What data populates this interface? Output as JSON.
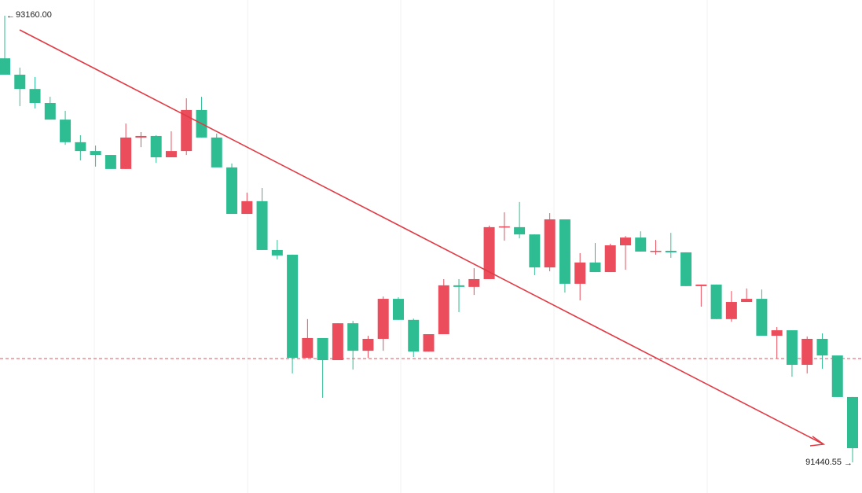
{
  "chart_data": {
    "type": "candlestick",
    "open": [
      92996,
      92933,
      92878,
      92824,
      92760,
      92673,
      92639,
      92624,
      92570,
      92691,
      92697,
      92615,
      92639,
      92797,
      92691,
      92576,
      92397,
      92446,
      92258,
      92240,
      91843,
      91919,
      91834,
      91976,
      91870,
      91916,
      92070,
      91989,
      91867,
      91934,
      92122,
      92116,
      92146,
      92346,
      92346,
      92318,
      92191,
      92376,
      92128,
      92210,
      92173,
      92276,
      92306,
      92252,
      92255,
      92249,
      92119,
      92125,
      91992,
      92058,
      92070,
      91928,
      91949,
      91816,
      91916,
      91852,
      91692
    ],
    "high": [
      93160,
      92960,
      92924,
      92848,
      92794,
      92700,
      92660,
      92624,
      92745,
      92712,
      92700,
      92715,
      92842,
      92848,
      92706,
      92591,
      92479,
      92497,
      92297,
      92240,
      91992,
      91919,
      91976,
      91985,
      91928,
      92079,
      92076,
      91994,
      91934,
      92146,
      92146,
      92188,
      92352,
      92403,
      92443,
      92318,
      92400,
      92376,
      92246,
      92285,
      92282,
      92312,
      92330,
      92297,
      92324,
      92249,
      92125,
      92125,
      92100,
      92110,
      92106,
      91961,
      91949,
      91925,
      91937,
      91852,
      91692
    ],
    "low": [
      92933,
      92812,
      92803,
      92760,
      92663,
      92603,
      92579,
      92570,
      92570,
      92654,
      92594,
      92615,
      92624,
      92691,
      92576,
      92397,
      92397,
      92258,
      92222,
      91783,
      91843,
      91689,
      91834,
      91798,
      91843,
      91870,
      91989,
      91846,
      91867,
      91934,
      92019,
      92085,
      92146,
      92294,
      92303,
      92161,
      92176,
      92094,
      92064,
      92173,
      92173,
      92182,
      92252,
      92240,
      92228,
      92119,
      92040,
      91992,
      91982,
      92058,
      91928,
      91840,
      91770,
      91783,
      91801,
      91692,
      91440.55
    ],
    "close": [
      92933,
      92878,
      92824,
      92760,
      92673,
      92639,
      92624,
      92570,
      92691,
      92697,
      92615,
      92639,
      92797,
      92691,
      92576,
      92397,
      92446,
      92258,
      92237,
      91843,
      91919,
      91834,
      91976,
      91870,
      91916,
      92070,
      91989,
      91867,
      91934,
      92122,
      92116,
      92146,
      92346,
      92349,
      92318,
      92191,
      92376,
      92128,
      92210,
      92173,
      92276,
      92306,
      92252,
      92255,
      92249,
      92119,
      92125,
      91992,
      92058,
      92070,
      91928,
      91949,
      91816,
      91916,
      91852,
      91692,
      91495
    ],
    "up_color": "#eb4d5c",
    "down_color": "#2ebd93",
    "ylim": [
      91322.5,
      93220.5
    ],
    "max_label": {
      "value": 93160,
      "label": "93160.00"
    },
    "min_label": {
      "value": 91440.55,
      "label": "91440.55"
    },
    "price_line": {
      "value": 91840,
      "color": "#e0555f"
    }
  }
}
